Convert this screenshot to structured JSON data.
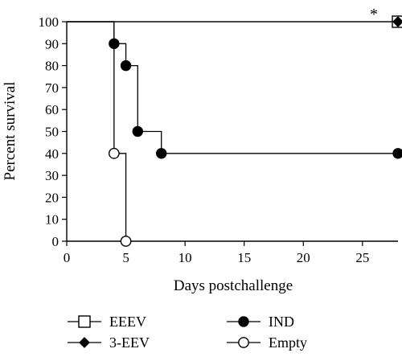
{
  "chart_data": {
    "type": "line",
    "xlabel": "Days postchallenge",
    "ylabel": "Percent survival",
    "xlim": [
      0,
      28
    ],
    "ylim": [
      0,
      100
    ],
    "x_ticks": [
      0,
      5,
      10,
      15,
      20,
      25
    ],
    "y_ticks": [
      0,
      10,
      20,
      30,
      40,
      50,
      60,
      70,
      80,
      90,
      100
    ],
    "grid": false,
    "legend_position": "bottom",
    "annotation": "*",
    "series": [
      {
        "name": "EEEV",
        "marker": "open-square",
        "points": [
          {
            "x": 28,
            "y": 100
          }
        ],
        "step": [
          {
            "x": 0,
            "y": 100
          },
          {
            "x": 28,
            "y": 100
          }
        ]
      },
      {
        "name": "3-EEV",
        "marker": "filled-diamond",
        "points": [
          {
            "x": 28,
            "y": 100
          }
        ],
        "step": [
          {
            "x": 0,
            "y": 100
          },
          {
            "x": 28,
            "y": 100
          }
        ]
      },
      {
        "name": "IND",
        "marker": "filled-circle",
        "points": [
          {
            "x": 4,
            "y": 90
          },
          {
            "x": 5,
            "y": 80
          },
          {
            "x": 6,
            "y": 50
          },
          {
            "x": 8,
            "y": 40
          },
          {
            "x": 28,
            "y": 40
          }
        ],
        "step": [
          {
            "x": 0,
            "y": 100
          },
          {
            "x": 4,
            "y": 100
          },
          {
            "x": 4,
            "y": 90
          },
          {
            "x": 5,
            "y": 90
          },
          {
            "x": 5,
            "y": 80
          },
          {
            "x": 6,
            "y": 80
          },
          {
            "x": 6,
            "y": 50
          },
          {
            "x": 8,
            "y": 50
          },
          {
            "x": 8,
            "y": 40
          },
          {
            "x": 28,
            "y": 40
          }
        ]
      },
      {
        "name": "Empty",
        "marker": "open-circle",
        "points": [
          {
            "x": 4,
            "y": 40
          },
          {
            "x": 5,
            "y": 0
          }
        ],
        "step": [
          {
            "x": 0,
            "y": 100
          },
          {
            "x": 4,
            "y": 100
          },
          {
            "x": 4,
            "y": 40
          },
          {
            "x": 5,
            "y": 40
          },
          {
            "x": 5,
            "y": 0
          }
        ]
      }
    ],
    "legend": [
      {
        "label": "EEEV",
        "marker": "open-square"
      },
      {
        "label": "3-EEV",
        "marker": "filled-diamond"
      },
      {
        "label": "IND",
        "marker": "filled-circle"
      },
      {
        "label": "Empty",
        "marker": "open-circle"
      }
    ]
  }
}
